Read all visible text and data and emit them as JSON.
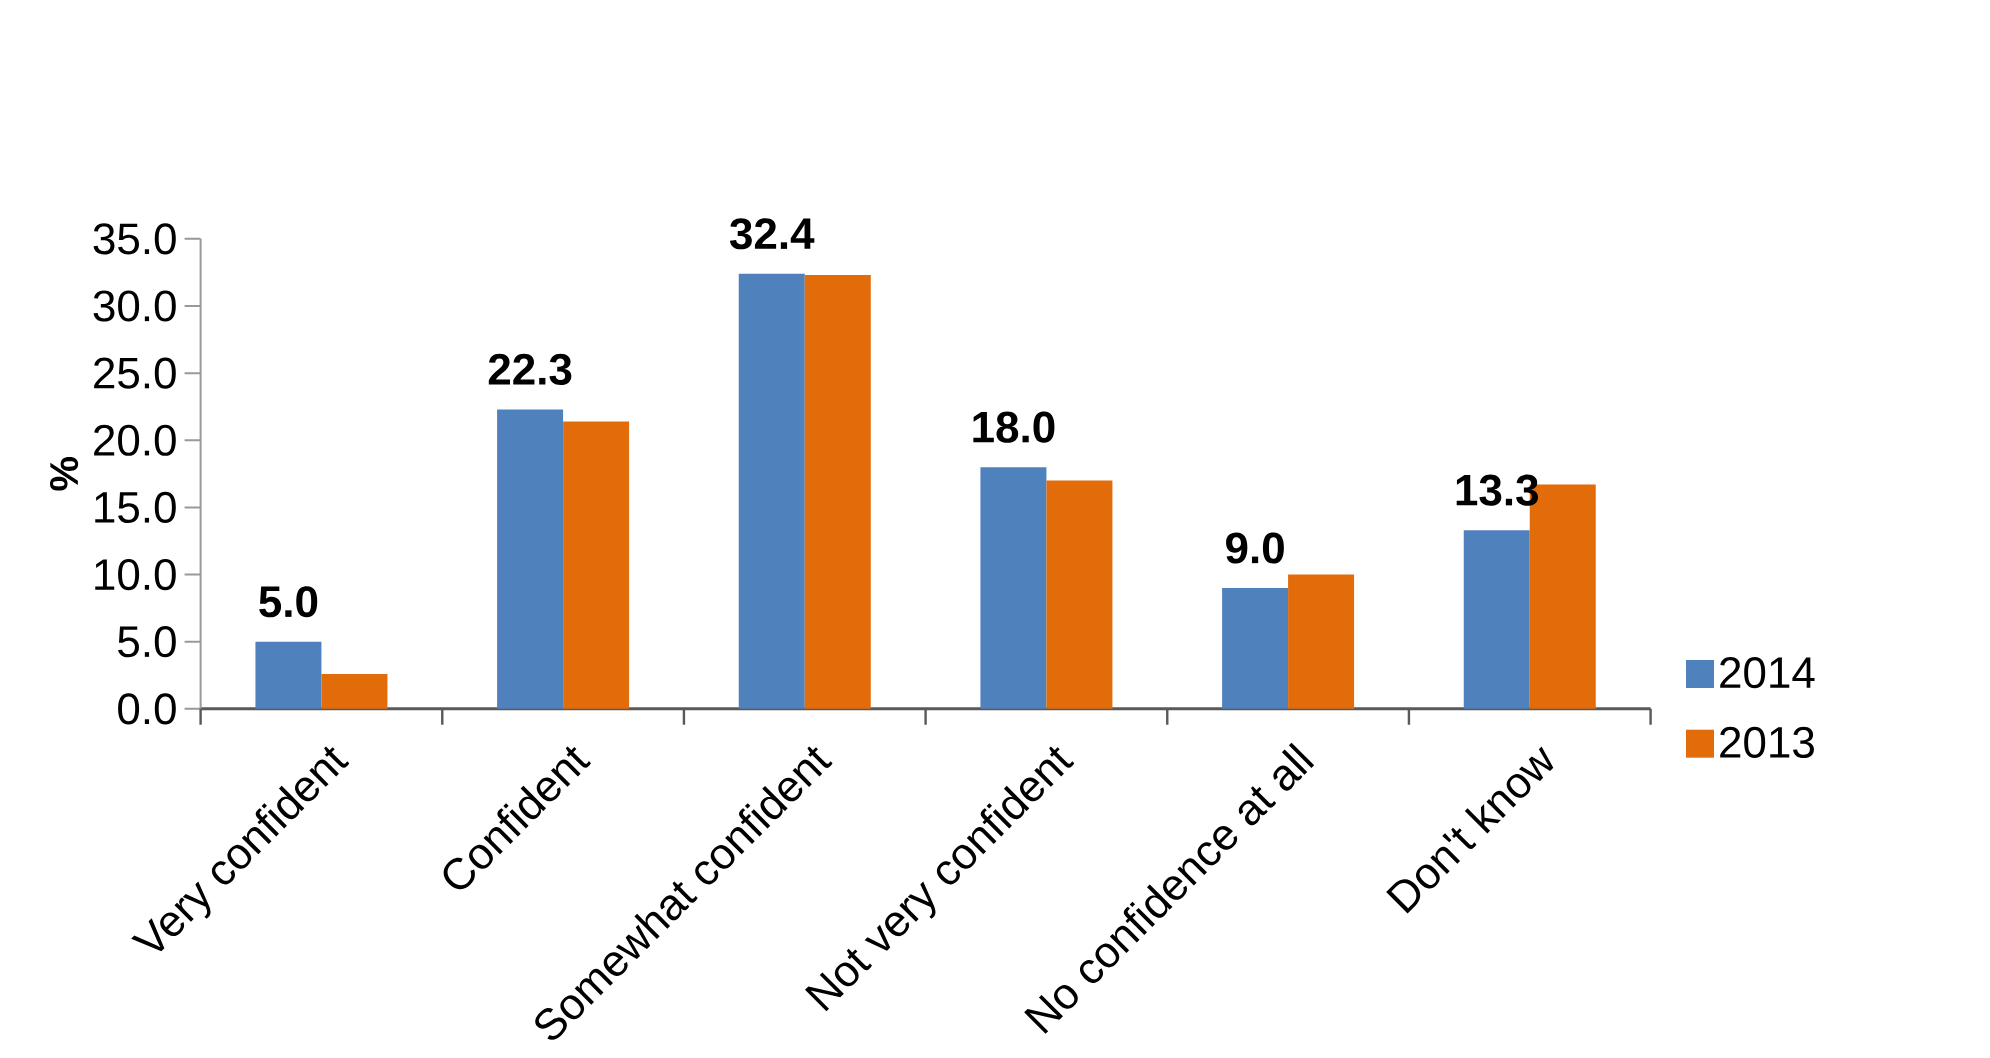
{
  "chart_data": {
    "type": "bar",
    "ylabel": "%",
    "categories": [
      "Very confident",
      "Confident",
      "Somewhat confident",
      "Not very confident",
      "No confidence at all",
      "Don't know"
    ],
    "series": [
      {
        "name": "2014",
        "color": "#4f81bd",
        "values": [
          5.0,
          22.3,
          32.4,
          18.0,
          9.0,
          13.3
        ],
        "value_labels": [
          "5.0",
          "22.3",
          "32.4",
          "18.0",
          "9.0",
          "13.3"
        ]
      },
      {
        "name": "2013",
        "color": "#e36c0a",
        "values": [
          2.6,
          21.4,
          32.3,
          17.0,
          10.0,
          16.7
        ]
      }
    ],
    "ylim": [
      0,
      35
    ],
    "yticks": [
      {
        "value": 0,
        "label": "0.0"
      },
      {
        "value": 5,
        "label": "5.0"
      },
      {
        "value": 10,
        "label": "10.0"
      },
      {
        "value": 15,
        "label": "15.0"
      },
      {
        "value": 20,
        "label": "20.0"
      },
      {
        "value": 25,
        "label": "25.0"
      },
      {
        "value": 30,
        "label": "30.0"
      },
      {
        "value": 35,
        "label": "35.0"
      }
    ],
    "grid": false,
    "legend": "right"
  }
}
